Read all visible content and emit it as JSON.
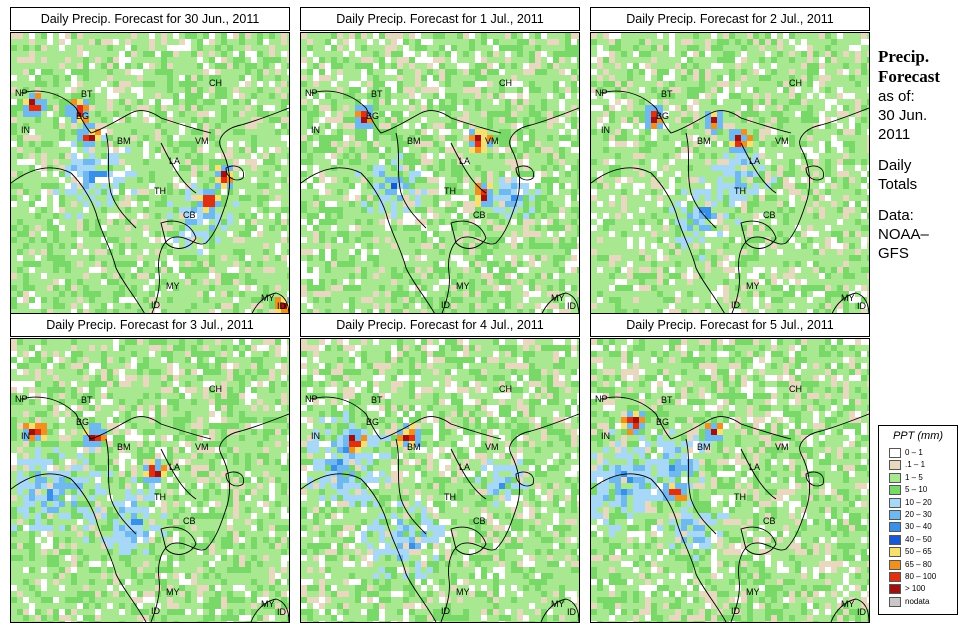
{
  "panels": [
    {
      "title": "Daily Precip. Forecast for  30 Jun., 2011"
    },
    {
      "title": "Daily Precip. Forecast for  1 Jul., 2011"
    },
    {
      "title": "Daily Precip. Forecast for  2 Jul., 2011"
    },
    {
      "title": "Daily Precip. Forecast for  3 Jul., 2011"
    },
    {
      "title": "Daily Precip. Forecast for  4 Jul., 2011"
    },
    {
      "title": "Daily Precip. Forecast for  5 Jul., 2011"
    }
  ],
  "map_labels": {
    "ch": "CH",
    "np": "NP",
    "bt": "BT",
    "bg": "BG",
    "in": "IN",
    "bm": "BM",
    "vm": "VM",
    "la": "LA",
    "th": "TH",
    "cb": "CB",
    "my": "MY",
    "id": "ID",
    "my2": "MY",
    "id2": "ID"
  },
  "sidebar": {
    "title_line1": "Precip.",
    "title_line2": "Forecast",
    "asof": "as of:",
    "date_line1": "30 Jun.",
    "date_line2": "2011",
    "daily_line1": "Daily",
    "daily_line2": "Totals",
    "data_line1": "Data:",
    "data_line2": "NOAA–",
    "data_line3": "GFS"
  },
  "legend": {
    "title": "PPT (mm)",
    "items": [
      {
        "label": "0 – 1",
        "color": "#ffffff"
      },
      {
        "label": ".1 – 1",
        "color": "#e8d8c0"
      },
      {
        "label": "1 – 5",
        "color": "#a8e890"
      },
      {
        "label": "5 – 10",
        "color": "#78d868"
      },
      {
        "label": "10 – 20",
        "color": "#a8d8f8"
      },
      {
        "label": "20 – 30",
        "color": "#70b8f0"
      },
      {
        "label": "30 – 40",
        "color": "#3890e8"
      },
      {
        "label": "40 – 50",
        "color": "#1858d0"
      },
      {
        "label": "50 – 65",
        "color": "#f8e070"
      },
      {
        "label": "65 – 80",
        "color": "#f09020"
      },
      {
        "label": "80 – 100",
        "color": "#e03010"
      },
      {
        "label": "> 100",
        "color": "#a01010"
      },
      {
        "label": "nodata",
        "color": "#c8c8c8"
      }
    ]
  }
}
